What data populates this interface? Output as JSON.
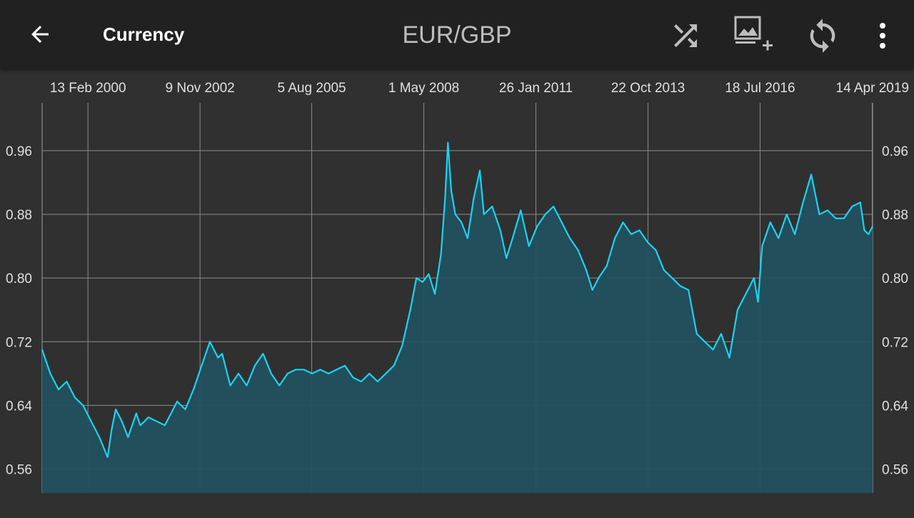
{
  "header": {
    "back_icon": "arrow-back-icon",
    "app_title": "Currency",
    "pair": "EUR/GBP",
    "actions": [
      {
        "name": "shuffle-button",
        "icon": "shuffle-icon"
      },
      {
        "name": "add-image-button",
        "icon": "add-image-icon"
      },
      {
        "name": "refresh-button",
        "icon": "refresh-icon"
      },
      {
        "name": "more-options-button",
        "icon": "more-vert-icon"
      }
    ]
  },
  "colors": {
    "line": "#18d4f4",
    "fill": "#23505e",
    "grid": "#8c8c8c",
    "text": "#e0e0e0"
  },
  "chart_data": {
    "type": "area",
    "x_tick_labels": [
      "13 Feb 2000",
      "9 Nov 2002",
      "5 Aug 2005",
      "1 May 2008",
      "26 Jan 2011",
      "22 Oct 2013",
      "18 Jul 2016",
      "14 Apr 2019"
    ],
    "x_tick_years": [
      2000.12,
      2002.86,
      2005.59,
      2008.33,
      2011.07,
      2013.81,
      2016.55,
      2019.29
    ],
    "y_tick_labels": [
      "0.96",
      "0.88",
      "0.80",
      "0.72",
      "0.64",
      "0.56"
    ],
    "y_ticks": [
      0.96,
      0.88,
      0.8,
      0.72,
      0.64,
      0.56
    ],
    "xlim": [
      1999.0,
      2019.3
    ],
    "ylim": [
      0.53,
      1.02
    ],
    "grid": true,
    "x": [
      1999.0,
      1999.2,
      1999.4,
      1999.6,
      1999.8,
      2000.0,
      2000.2,
      2000.4,
      2000.6,
      2000.7,
      2000.8,
      2000.95,
      2001.1,
      2001.3,
      2001.4,
      2001.6,
      2001.8,
      2002.0,
      2002.3,
      2002.5,
      2002.7,
      2002.9,
      2003.1,
      2003.3,
      2003.4,
      2003.6,
      2003.8,
      2004.0,
      2004.2,
      2004.4,
      2004.6,
      2004.8,
      2005.0,
      2005.2,
      2005.4,
      2005.6,
      2005.8,
      2006.0,
      2006.2,
      2006.4,
      2006.6,
      2006.8,
      2007.0,
      2007.2,
      2007.4,
      2007.6,
      2007.8,
      2008.0,
      2008.15,
      2008.3,
      2008.45,
      2008.6,
      2008.75,
      2008.85,
      2008.92,
      2009.0,
      2009.1,
      2009.25,
      2009.4,
      2009.55,
      2009.7,
      2009.8,
      2010.0,
      2010.2,
      2010.35,
      2010.5,
      2010.7,
      2010.9,
      2011.1,
      2011.3,
      2011.5,
      2011.7,
      2011.9,
      2012.1,
      2012.3,
      2012.45,
      2012.6,
      2012.8,
      2013.0,
      2013.2,
      2013.4,
      2013.6,
      2013.8,
      2014.0,
      2014.2,
      2014.4,
      2014.6,
      2014.8,
      2015.0,
      2015.2,
      2015.4,
      2015.6,
      2015.8,
      2016.0,
      2016.2,
      2016.4,
      2016.5,
      2016.6,
      2016.8,
      2017.0,
      2017.2,
      2017.4,
      2017.6,
      2017.8,
      2018.0,
      2018.2,
      2018.4,
      2018.6,
      2018.8,
      2019.0,
      2019.1,
      2019.2,
      2019.3
    ],
    "y": [
      0.71,
      0.68,
      0.66,
      0.67,
      0.65,
      0.64,
      0.62,
      0.6,
      0.575,
      0.61,
      0.635,
      0.62,
      0.6,
      0.63,
      0.615,
      0.625,
      0.62,
      0.615,
      0.645,
      0.635,
      0.66,
      0.69,
      0.72,
      0.7,
      0.705,
      0.665,
      0.68,
      0.665,
      0.69,
      0.705,
      0.68,
      0.665,
      0.68,
      0.685,
      0.685,
      0.68,
      0.685,
      0.68,
      0.685,
      0.69,
      0.675,
      0.67,
      0.68,
      0.67,
      0.68,
      0.69,
      0.715,
      0.76,
      0.8,
      0.795,
      0.805,
      0.78,
      0.83,
      0.9,
      0.97,
      0.91,
      0.88,
      0.87,
      0.85,
      0.9,
      0.935,
      0.88,
      0.89,
      0.86,
      0.825,
      0.85,
      0.885,
      0.84,
      0.865,
      0.88,
      0.89,
      0.87,
      0.85,
      0.835,
      0.81,
      0.785,
      0.8,
      0.815,
      0.85,
      0.87,
      0.855,
      0.86,
      0.845,
      0.835,
      0.81,
      0.8,
      0.79,
      0.785,
      0.73,
      0.72,
      0.71,
      0.73,
      0.7,
      0.76,
      0.78,
      0.8,
      0.77,
      0.84,
      0.87,
      0.85,
      0.88,
      0.855,
      0.895,
      0.93,
      0.88,
      0.885,
      0.875,
      0.875,
      0.89,
      0.895,
      0.86,
      0.855,
      0.865
    ]
  }
}
